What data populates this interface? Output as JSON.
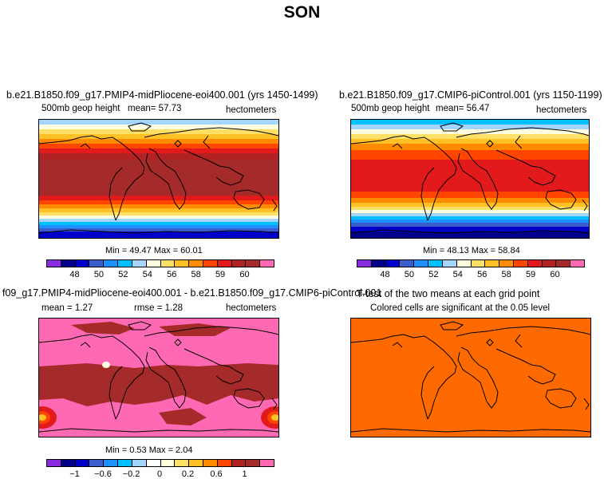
{
  "figure_title": "SON",
  "chart_data": [
    {
      "type": "heatmap",
      "title": "b.e21.B1850.f09_g17.PMIP4-midPliocene-eoi400.001 (yrs 1450-1499)",
      "variable": "500mb geop height",
      "mean_text": "mean=  57.73",
      "units": "hectometers",
      "stats_text": "Min =  49.47 Max =  60.01",
      "min": 49.47,
      "max": 60.01,
      "colorbar_ticks": [
        "48",
        "50",
        "52",
        "54",
        "56",
        "58",
        "59",
        "60"
      ],
      "colors": [
        "#8a2be2",
        "#00008b",
        "#0000cd",
        "#3a5fcd",
        "#1e90ff",
        "#00bfff",
        "#a3d5ff",
        "#ffffe0",
        "#ffe066",
        "#ffc125",
        "#ff8c00",
        "#ff4500",
        "#e31a1c",
        "#b22222",
        "#a52a2a",
        "#ff69b4"
      ]
    },
    {
      "type": "heatmap",
      "title": "b.e21.B1850.f09_g17.CMIP6-piControl.001 (yrs 1150-1199)",
      "variable": "500mb geop height",
      "mean_text": "mean=  56.47",
      "units": "hectometers",
      "stats_text": "Min =  48.13 Max =  58.84",
      "min": 48.13,
      "max": 58.84,
      "colorbar_ticks": [
        "48",
        "50",
        "52",
        "54",
        "56",
        "58",
        "59",
        "60"
      ],
      "colors": [
        "#8a2be2",
        "#00008b",
        "#0000cd",
        "#3a5fcd",
        "#1e90ff",
        "#00bfff",
        "#a3d5ff",
        "#ffffe0",
        "#ffe066",
        "#ffc125",
        "#ff8c00",
        "#ff4500",
        "#e31a1c",
        "#b22222",
        "#a52a2a",
        "#ff69b4"
      ]
    },
    {
      "type": "heatmap",
      "title": "f09_g17.PMIP4-midPliocene-eoi400.001 - b.e21.B1850.f09_g17.CMIP6-piControl.001",
      "mean_text": "mean =   1.27",
      "rmse_text": "rmse =   1.28",
      "units": "hectometers",
      "stats_text": "Min =  0.53 Max =  2.04",
      "min": 0.53,
      "max": 2.04,
      "colorbar_ticks": [
        "−1",
        "−0.6",
        "−0.2",
        "0",
        "0.2",
        "0.6",
        "1"
      ],
      "colors": [
        "#8a2be2",
        "#00008b",
        "#0000cd",
        "#3a5fcd",
        "#1e90ff",
        "#00bfff",
        "#a3d5ff",
        "#ffffff",
        "#ffffe0",
        "#ffe066",
        "#ffc125",
        "#ff8c00",
        "#ff4500",
        "#b22222",
        "#a52a2a",
        "#ff69b4"
      ]
    },
    {
      "type": "heatmap",
      "title": "T-test of the two means at each grid point",
      "subtitle": "Colored cells are significant at the 0.05 level",
      "fill_color": "#ff6a00"
    }
  ]
}
